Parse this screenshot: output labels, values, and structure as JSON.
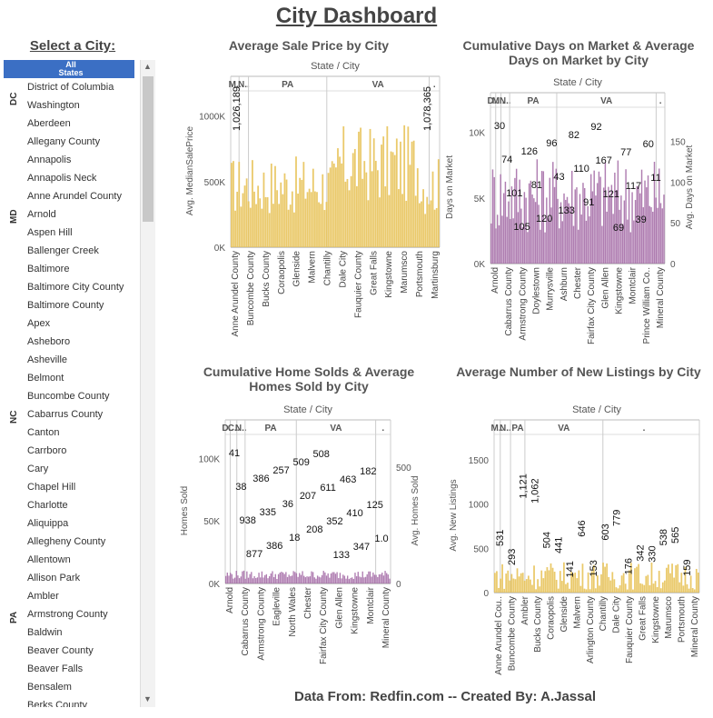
{
  "title": "City Dashboard",
  "footer": "Data From: Redfin.com -- Created By: A.Jassal",
  "selector": {
    "title": "Select a City:",
    "all_label": "All States",
    "groups": [
      {
        "state": "DC",
        "cities": [
          "District of Columbia",
          "Washington"
        ]
      },
      {
        "state": "MD",
        "cities": [
          "Aberdeen",
          "Allegany County",
          "Annapolis",
          "Annapolis Neck",
          "Anne Arundel County",
          "Arnold",
          "Aspen Hill",
          "Ballenger Creek",
          "Baltimore",
          "Baltimore City County",
          "Baltimore County"
        ]
      },
      {
        "state": "NC",
        "cities": [
          "Apex",
          "Asheboro",
          "Asheville",
          "Belmont",
          "Buncombe County",
          "Cabarrus County",
          "Canton",
          "Carrboro",
          "Cary",
          "Chapel Hill",
          "Charlotte"
        ]
      },
      {
        "state": "PA",
        "cities": [
          "Aliquippa",
          "Allegheny County",
          "Allentown",
          "Allison Park",
          "Ambler",
          "Armstrong County",
          "Baldwin",
          "Beaver County",
          "Beaver Falls",
          "Bensalem",
          "Berks County"
        ]
      }
    ]
  },
  "icons": {
    "scroll_up": "chevron-up-icon",
    "scroll_down": "chevron-down-icon"
  },
  "colors": {
    "gold": "#e8c35a",
    "purple": "#a66fa8",
    "accent": "#3b6fc4"
  },
  "chart_data": [
    {
      "type": "bar",
      "title": "Average Sale Price by City",
      "header": "State  /  City",
      "groups": [
        "M..",
        "N..",
        "PA",
        "VA",
        "."
      ],
      "ylabel": "Avg. MedianSalePrice",
      "yticks": [
        "1000K",
        "500K",
        "0K"
      ],
      "ylim": [
        0,
        1150000
      ],
      "categories": [
        "Anne Arundel County",
        "Buncombe County",
        "Bucks County",
        "Coraopolis",
        "Glenside",
        "Malvern",
        "Chantilly",
        "Dale City",
        "Fauquier County",
        "Great Falls",
        "Kingstowne",
        "Marumsco",
        "Portsmouth",
        "Martinsburg"
      ],
      "annotations": [
        "1,026,189",
        "1,078,365"
      ],
      "annotation_values": [
        1026189,
        1078365
      ]
    },
    {
      "type": "bar",
      "title": "Cumulative Days on Market & Average Days on Market by City",
      "header": "State  /  City",
      "groups": [
        "D..",
        "M..",
        "N..",
        "PA",
        "VA",
        "."
      ],
      "ylabel": "Days on Market",
      "y2label": "Avg. Days on Market",
      "yticks": [
        "10K",
        "5K",
        "0K"
      ],
      "y2ticks": [
        "150",
        "100",
        "50",
        "0"
      ],
      "ylim": [
        0,
        14000
      ],
      "y2lim": [
        0,
        180
      ],
      "categories": [
        "Arnold",
        "Cabarrus County",
        "Armstrong County",
        "Doylestown",
        "Murrysville",
        "Ashburn",
        "Chester",
        "Fairfax City County",
        "Glen Allen",
        "Kingstowne",
        "Montclair",
        "Prince William Co..",
        "Mineral County"
      ],
      "labels": [
        "30",
        "74",
        "101",
        "105",
        "126",
        "81",
        "120",
        "96",
        "43",
        "133",
        "82",
        "110",
        "91",
        "92",
        "167",
        "121",
        "69",
        "77",
        "117",
        "39",
        "60",
        "11"
      ]
    },
    {
      "type": "bar",
      "title": "Cumulative Home Solds & Average Homes Sold by City",
      "header": "State  /  City",
      "groups": [
        "D..",
        "C..",
        "N..",
        "PA",
        "VA",
        "."
      ],
      "ylabel": "Homes Sold",
      "y2label": "Avg. Homes Sold",
      "yticks": [
        "100K",
        "50K",
        "0K"
      ],
      "y2ticks": [
        "500",
        "0"
      ],
      "ylim": [
        0,
        100000
      ],
      "y2lim": [
        0,
        900
      ],
      "categories": [
        "Arnold",
        "Cabarrus County",
        "Armstrong County",
        "Eagleville",
        "North Wales",
        "Chester",
        "Fairfax City County",
        "Glen Allen",
        "Kingstowne",
        "Montclair",
        "Mineral County"
      ],
      "labels": [
        "41",
        "38",
        "938",
        "877",
        "386",
        "335",
        "386",
        "257",
        "36",
        "18",
        "509",
        "207",
        "208",
        "508",
        "611",
        "352",
        "133",
        "463",
        "410",
        "347",
        "182",
        "125",
        "1.0"
      ]
    },
    {
      "type": "bar",
      "title": "Average Number of New Listings by City",
      "header": "State  /  City",
      "groups": [
        "M..",
        "N..",
        "PA",
        "VA",
        "."
      ],
      "ylabel": "Avg. New Listings",
      "yticks": [
        "1500",
        "1000",
        "500",
        "0"
      ],
      "ylim": [
        0,
        1650
      ],
      "categories": [
        "Anne Arundel Cou..",
        "Buncombe County",
        "Ambler",
        "Bucks County",
        "Coraopolis",
        "Glenside",
        "Malvern",
        "Arlington County",
        "Chantilly",
        "Dale City",
        "Fauquier County",
        "Great Falls",
        "Kingstowne",
        "Marumsco",
        "Portsmouth",
        "Mineral County"
      ],
      "labels": [
        "531",
        "293",
        "1,121",
        "1,062",
        "504",
        "441",
        "141",
        "646",
        "153",
        "603",
        "779",
        "176",
        "342",
        "330",
        "538",
        "565",
        "159"
      ],
      "label_values": [
        531,
        293,
        1121,
        1062,
        504,
        441,
        141,
        646,
        153,
        603,
        779,
        176,
        342,
        330,
        538,
        565,
        159
      ]
    }
  ]
}
